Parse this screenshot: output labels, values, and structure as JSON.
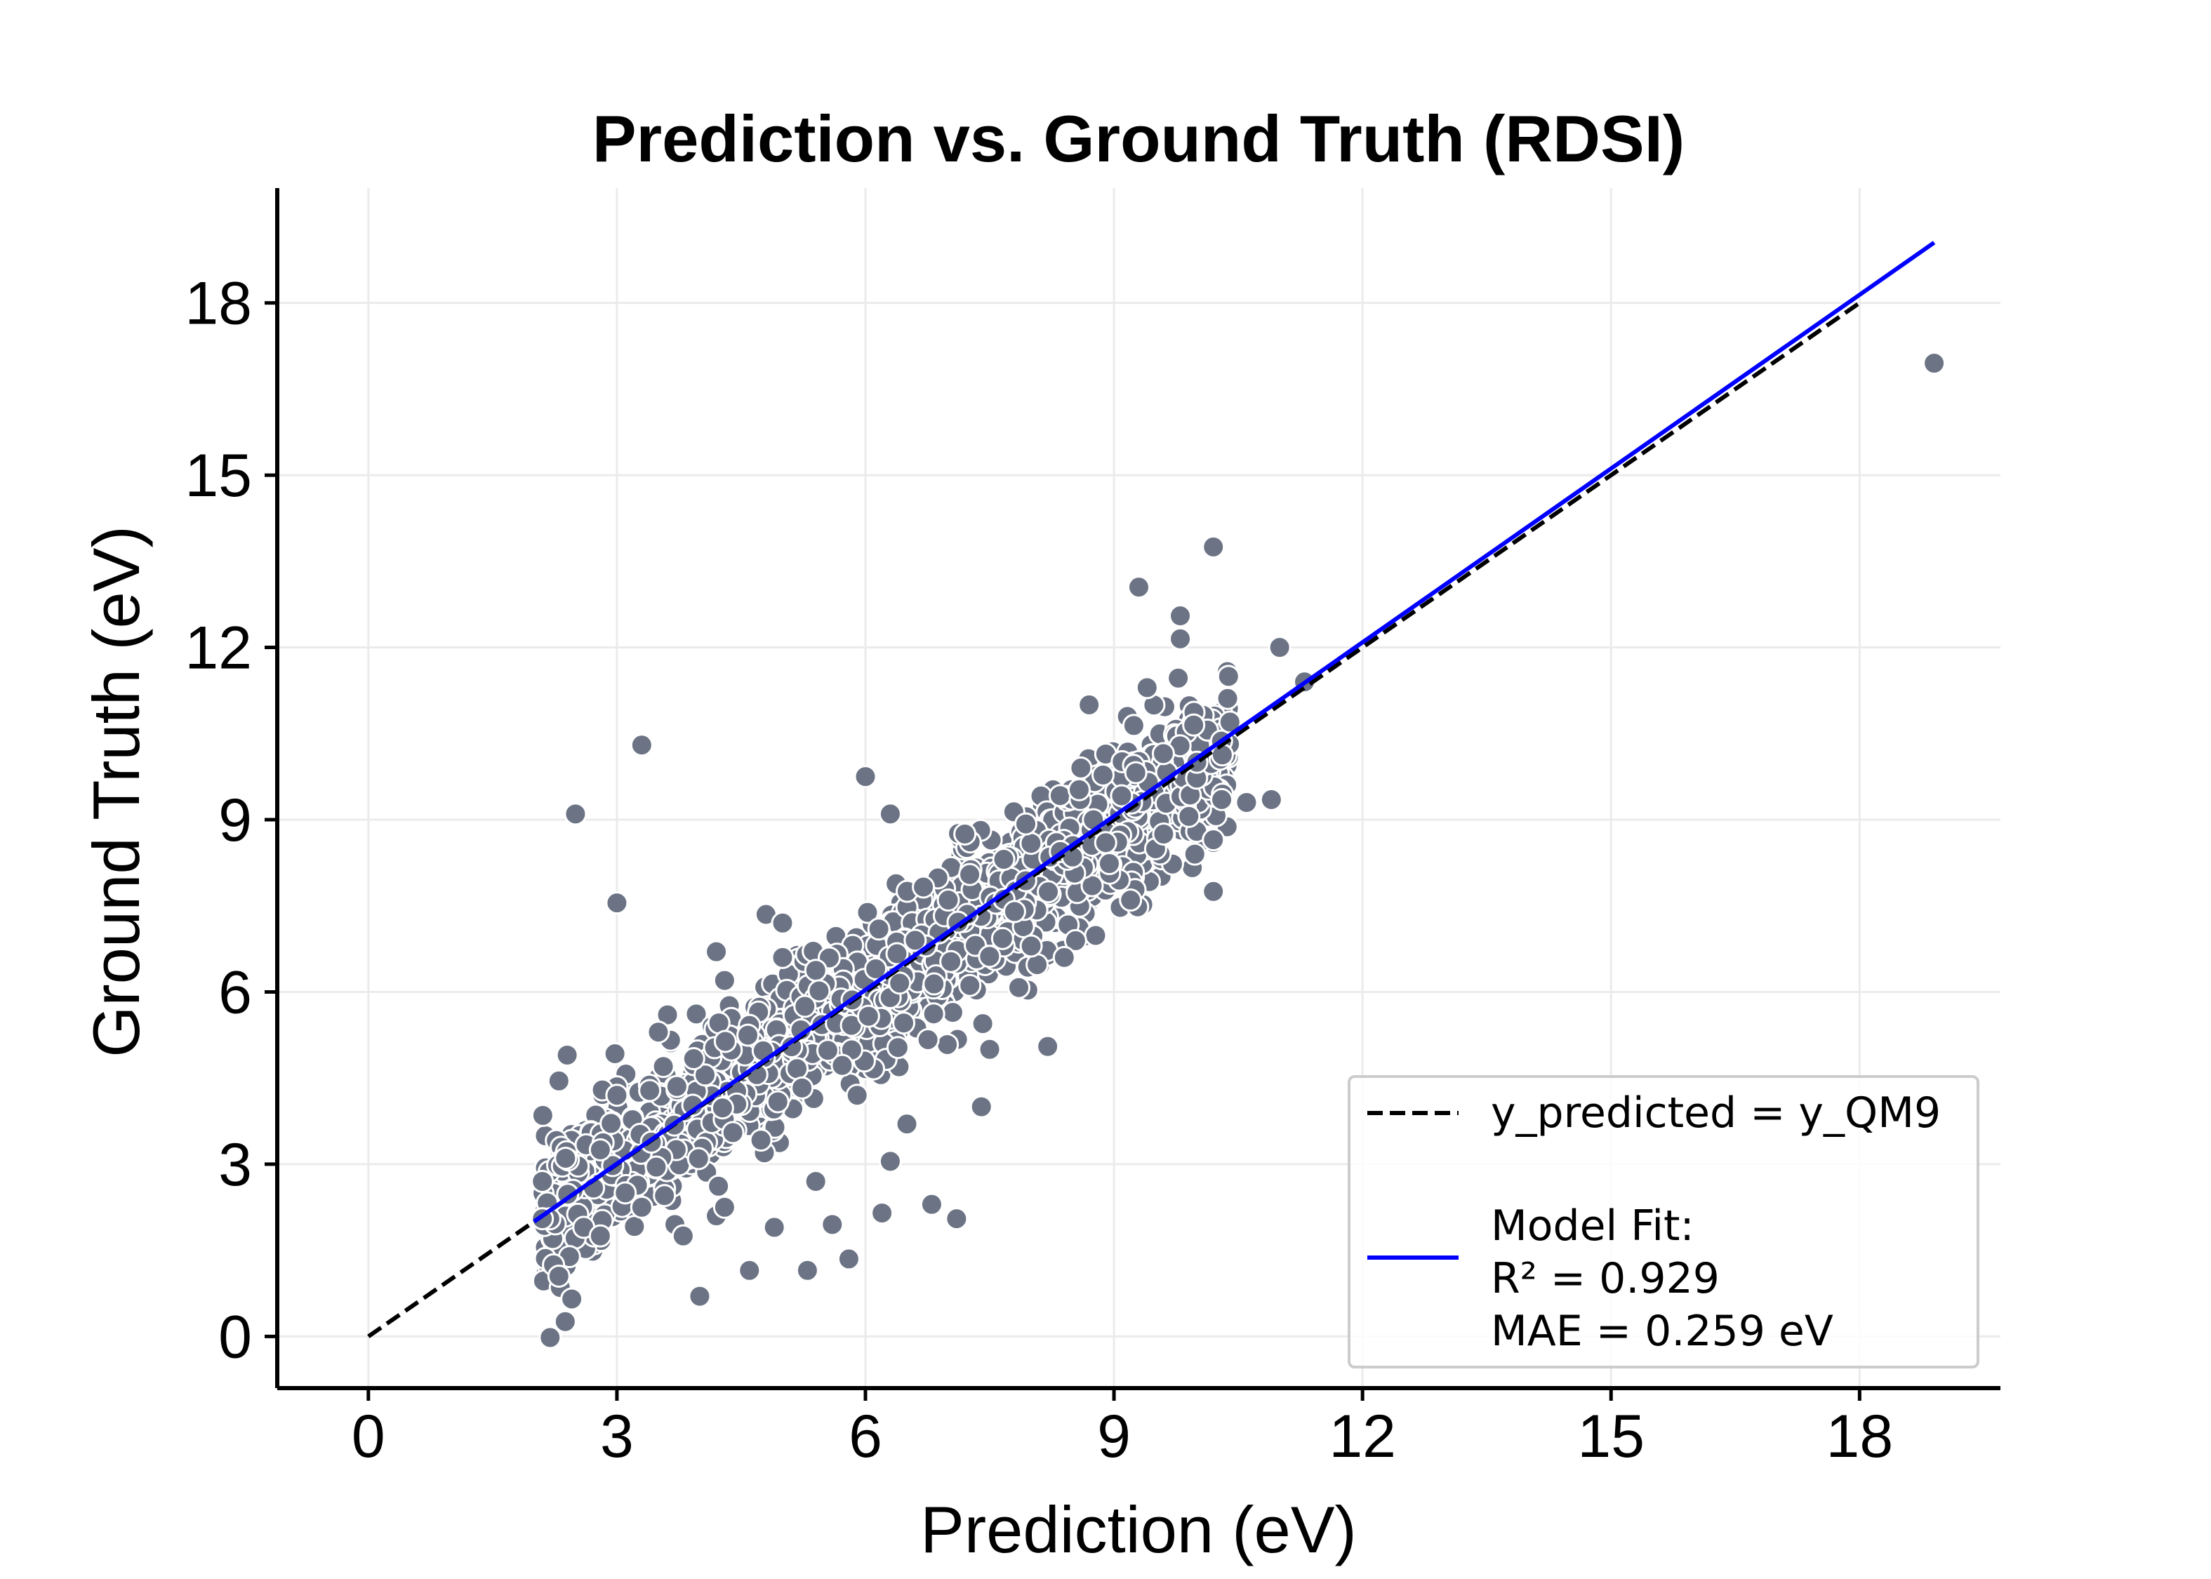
{
  "chart_data": {
    "type": "scatter",
    "title": "Prediction vs. Ground Truth (RDSI)",
    "xlabel": "Prediction (eV)",
    "ylabel": "Ground Truth (eV)",
    "xlim": [
      -1.1,
      19.7
    ],
    "ylim": [
      -0.9,
      20.0
    ],
    "xticks": [
      0,
      3,
      6,
      9,
      12,
      15,
      18
    ],
    "yticks": [
      0,
      3,
      6,
      9,
      12,
      15,
      18
    ],
    "grid": true,
    "legend_position": "lower-right",
    "legend": {
      "identity_label": "y_predicted = y_QM9",
      "fit_label_lines": [
        "Model Fit:",
        "R² = 0.929",
        "MAE = 0.259 eV"
      ]
    },
    "metrics": {
      "r2": 0.929,
      "mae": 0.259
    },
    "identity_line": {
      "x": [
        0,
        18
      ],
      "y": [
        0,
        18
      ]
    },
    "fit_line": {
      "x": [
        2.0,
        18.9
      ],
      "y": [
        2.0,
        19.05
      ]
    },
    "points": [
      [
        2.1,
        2.05
      ],
      [
        2.1,
        2.7
      ],
      [
        2.3,
        1.05
      ],
      [
        2.5,
        9.1
      ],
      [
        2.4,
        4.9
      ],
      [
        2.3,
        4.45
      ],
      [
        2.6,
        1.9
      ],
      [
        2.8,
        1.75
      ],
      [
        2.8,
        3.25
      ],
      [
        3.0,
        7.55
      ],
      [
        3.3,
        10.3
      ],
      [
        3.0,
        4.2
      ],
      [
        3.1,
        2.5
      ],
      [
        3.3,
        2.25
      ],
      [
        3.5,
        5.3
      ],
      [
        3.7,
        1.95
      ],
      [
        3.8,
        1.75
      ],
      [
        4.0,
        0.7
      ],
      [
        4.2,
        2.1
      ],
      [
        4.3,
        2.25
      ],
      [
        4.3,
        6.2
      ],
      [
        4.2,
        6.7
      ],
      [
        4.4,
        3.55
      ],
      [
        4.6,
        1.15
      ],
      [
        4.9,
        1.9
      ],
      [
        4.8,
        7.35
      ],
      [
        5.0,
        7.2
      ],
      [
        5.0,
        6.6
      ],
      [
        5.3,
        1.15
      ],
      [
        5.4,
        2.7
      ],
      [
        5.6,
        1.95
      ],
      [
        5.8,
        1.35
      ],
      [
        5.9,
        4.2
      ],
      [
        6.0,
        9.75
      ],
      [
        6.2,
        2.15
      ],
      [
        6.3,
        3.05
      ],
      [
        6.3,
        9.1
      ],
      [
        6.5,
        3.7
      ],
      [
        6.6,
        6.9
      ],
      [
        6.8,
        2.3
      ],
      [
        7.1,
        2.05
      ],
      [
        7.4,
        4.0
      ],
      [
        7.2,
        8.75
      ],
      [
        7.0,
        7.6
      ],
      [
        7.5,
        5.0
      ],
      [
        7.8,
        7.4
      ],
      [
        8.0,
        6.8
      ],
      [
        8.2,
        5.05
      ],
      [
        8.4,
        6.6
      ],
      [
        8.5,
        8.35
      ],
      [
        8.6,
        9.9
      ],
      [
        8.7,
        11.0
      ],
      [
        8.9,
        8.6
      ],
      [
        9.2,
        7.6
      ],
      [
        9.3,
        13.05
      ],
      [
        9.4,
        11.3
      ],
      [
        9.6,
        8.75
      ],
      [
        9.8,
        12.55
      ],
      [
        9.8,
        12.15
      ],
      [
        10.0,
        10.0
      ],
      [
        10.2,
        13.75
      ],
      [
        10.2,
        8.65
      ],
      [
        10.2,
        7.75
      ],
      [
        10.3,
        9.35
      ],
      [
        10.4,
        10.7
      ],
      [
        10.6,
        9.3
      ],
      [
        10.9,
        9.35
      ],
      [
        11.0,
        12.0
      ],
      [
        11.3,
        11.4
      ],
      [
        18.9,
        16.95
      ]
    ],
    "cloud_band": {
      "x_range": [
        2.1,
        10.4
      ],
      "slope": 0.98,
      "intercept": 0.05,
      "spread_eV": 0.85,
      "count": 1700
    }
  },
  "colors": {
    "points": "#6b7384",
    "point_edge": "#ffffff",
    "fit_line": "#0000ff",
    "identity_line": "#000000",
    "grid": "#ebebeb",
    "legend_border": "#cccccc"
  }
}
